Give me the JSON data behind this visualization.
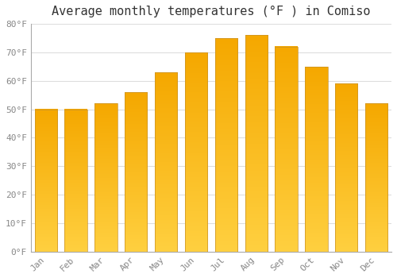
{
  "title": "Average monthly temperatures (°F ) in Comiso",
  "months": [
    "Jan",
    "Feb",
    "Mar",
    "Apr",
    "May",
    "Jun",
    "Jul",
    "Aug",
    "Sep",
    "Oct",
    "Nov",
    "Dec"
  ],
  "values": [
    50,
    50,
    52,
    56,
    63,
    70,
    75,
    76,
    72,
    65,
    59,
    52
  ],
  "bar_color_top": "#F5A800",
  "bar_color_bottom": "#FFD040",
  "bar_edge_color": "#C8922A",
  "ylim": [
    0,
    80
  ],
  "yticks": [
    0,
    10,
    20,
    30,
    40,
    50,
    60,
    70,
    80
  ],
  "ytick_labels": [
    "0°F",
    "10°F",
    "20°F",
    "30°F",
    "40°F",
    "50°F",
    "60°F",
    "70°F",
    "80°F"
  ],
  "background_color": "#FFFFFF",
  "grid_color": "#DDDDDD",
  "title_fontsize": 11,
  "tick_fontsize": 8,
  "tick_color": "#888888",
  "font_family": "monospace",
  "bar_width": 0.75
}
